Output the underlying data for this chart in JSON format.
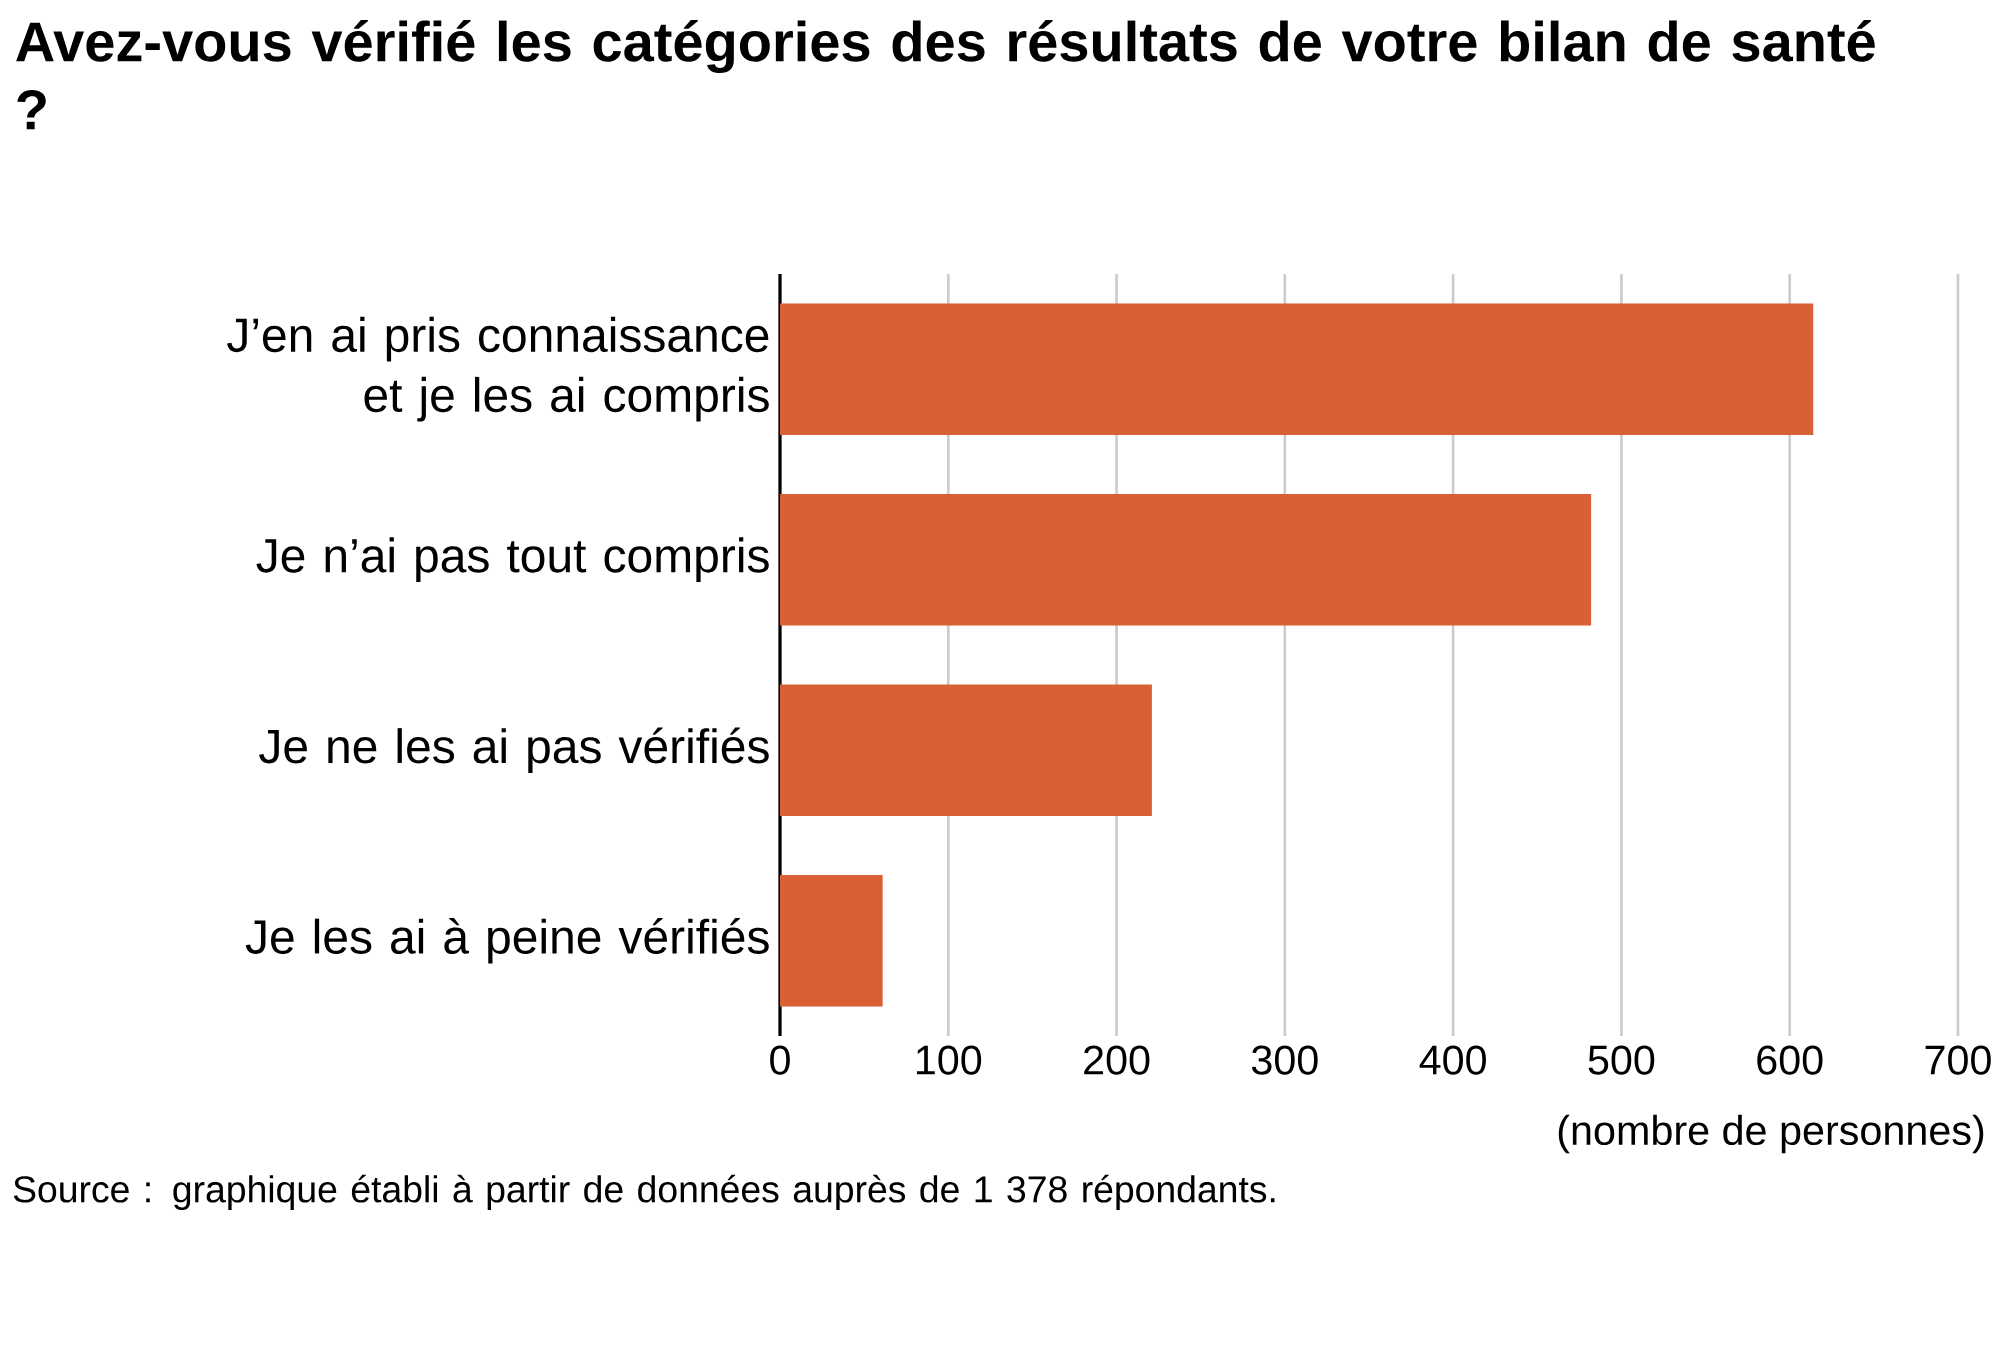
{
  "chart_data": {
    "type": "bar",
    "orientation": "horizontal",
    "title": "Avez-vous vérifié les catégories des résultats de votre bilan de santé ?",
    "categories": [
      "J’en ai pris connaissance et je les ai compris",
      "Je n’ai pas tout compris",
      "Je ne les ai pas vérifiés",
      "Je les ai à peine vérifiés"
    ],
    "values": [
      614,
      482,
      221,
      61
    ],
    "color": "#d95f35",
    "xlim": [
      0,
      700
    ],
    "xticks": [
      0,
      100,
      200,
      300,
      400,
      500,
      600,
      700
    ],
    "grid": "x",
    "xlabel": "(nombre de personnes)",
    "annotations": [
      "Source : graphique établi à partir de données auprès de 1 378 répondants."
    ]
  }
}
